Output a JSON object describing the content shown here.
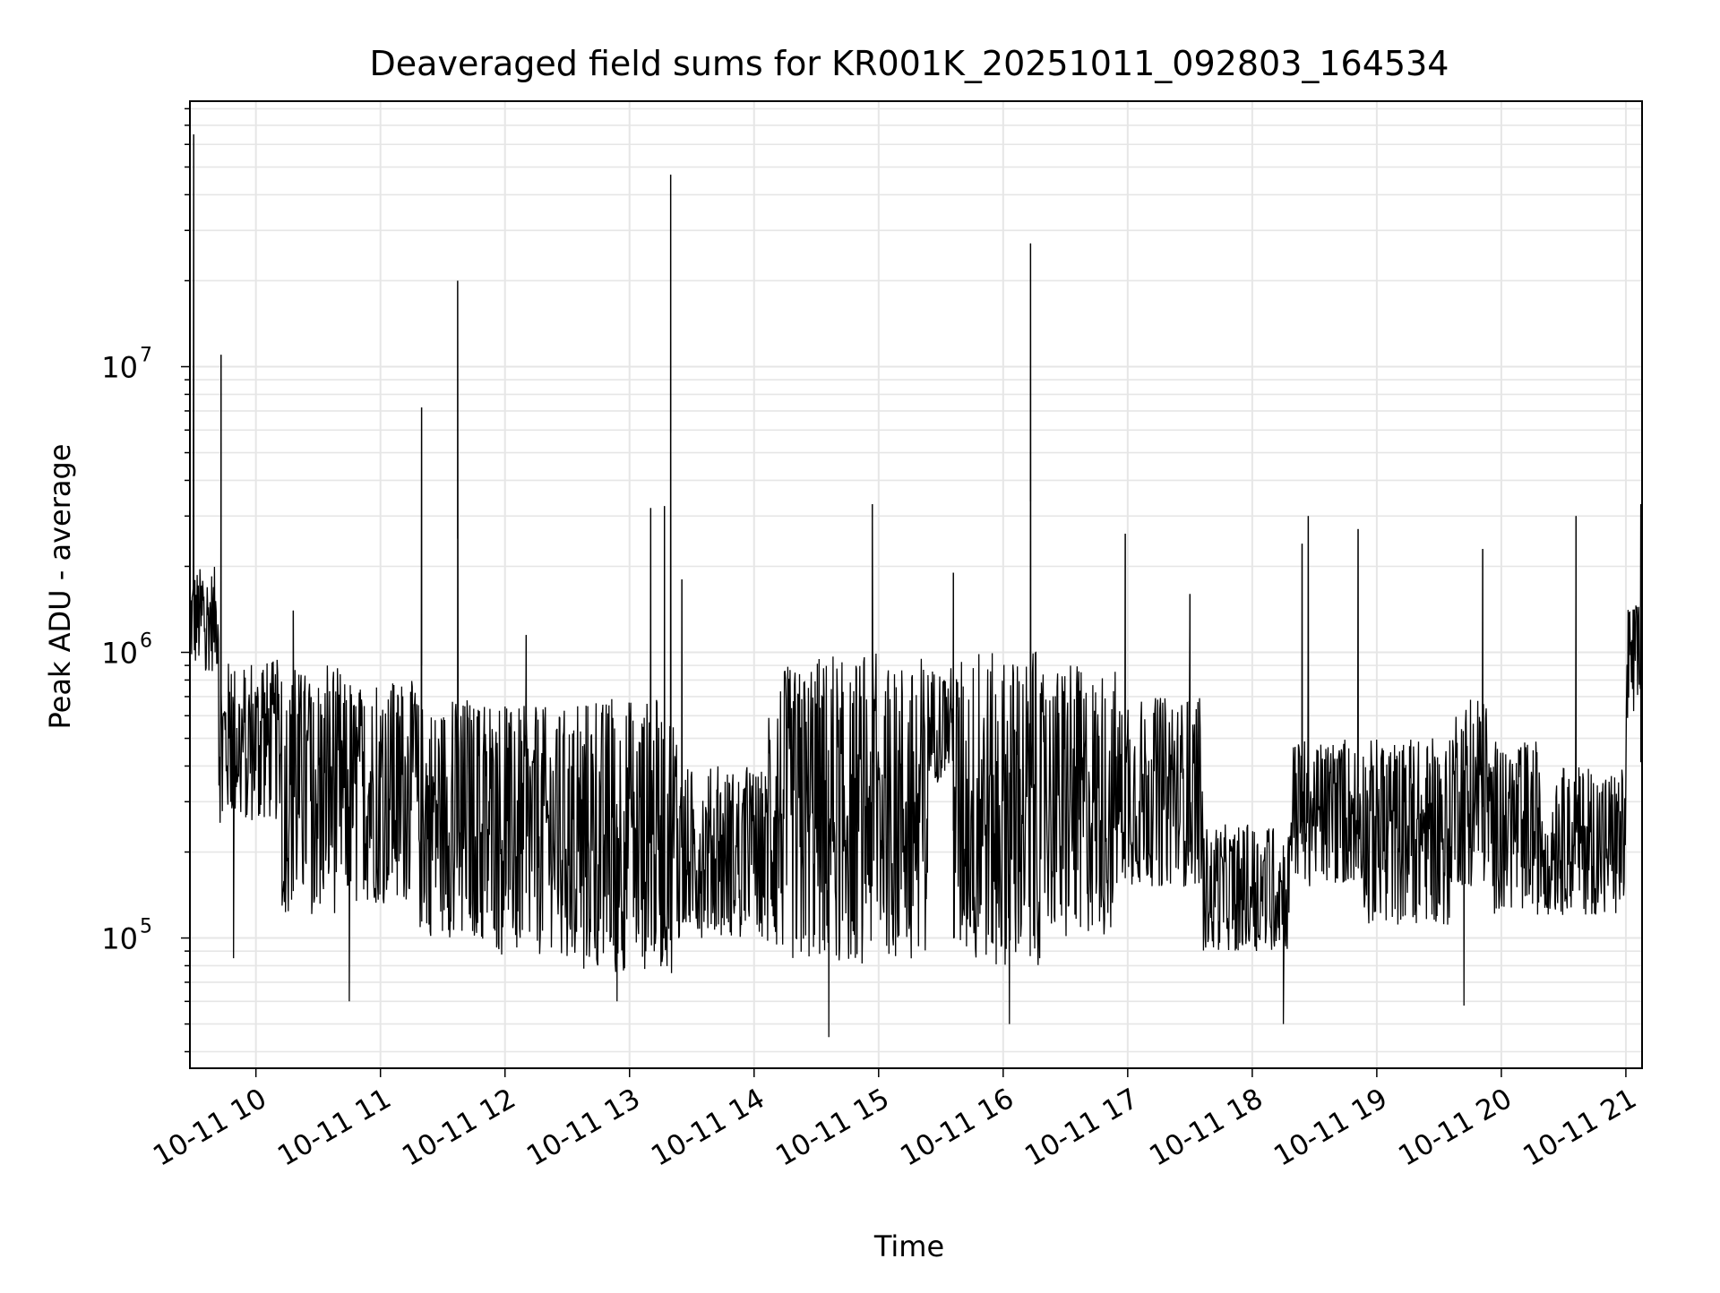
{
  "chart_data": {
    "type": "line",
    "title": "Deaveraged field sums for KR001K_20251011_092803_164534",
    "xlabel": "Time",
    "ylabel": "Peak ADU - average",
    "yscale": "log",
    "ylim": [
      35000,
      85000000
    ],
    "xlim_hours": [
      9.47,
      21.13
    ],
    "grid": true,
    "line_color": "#000000",
    "grid_color": "#e6e6e6",
    "x_ticks": [
      {
        "hour": 10,
        "label": "10-11 10"
      },
      {
        "hour": 11,
        "label": "10-11 11"
      },
      {
        "hour": 12,
        "label": "10-11 12"
      },
      {
        "hour": 13,
        "label": "10-11 13"
      },
      {
        "hour": 14,
        "label": "10-11 14"
      },
      {
        "hour": 15,
        "label": "10-11 15"
      },
      {
        "hour": 16,
        "label": "10-11 16"
      },
      {
        "hour": 17,
        "label": "10-11 17"
      },
      {
        "hour": 18,
        "label": "10-11 18"
      },
      {
        "hour": 19,
        "label": "10-11 19"
      },
      {
        "hour": 20,
        "label": "10-11 20"
      },
      {
        "hour": 21,
        "label": "10-11 21"
      }
    ],
    "y_ticks": [
      {
        "value": 100000,
        "base": "10",
        "exp": "5"
      },
      {
        "value": 1000000,
        "base": "10",
        "exp": "6"
      },
      {
        "value": 10000000,
        "base": "10",
        "exp": "7"
      }
    ],
    "series": [
      {
        "name": "Peak ADU - average",
        "segments": [
          {
            "t0": 9.47,
            "t1": 9.7,
            "lo": 850000,
            "hi": 2000000
          },
          {
            "t0": 9.7,
            "t1": 10.2,
            "lo": 250000,
            "hi": 950000
          },
          {
            "t0": 10.2,
            "t1": 10.7,
            "lo": 120000,
            "hi": 900000
          },
          {
            "t0": 10.7,
            "t1": 11.3,
            "lo": 130000,
            "hi": 800000
          },
          {
            "t0": 11.3,
            "t1": 11.8,
            "lo": 100000,
            "hi": 700000
          },
          {
            "t0": 11.8,
            "t1": 12.6,
            "lo": 85000,
            "hi": 650000
          },
          {
            "t0": 12.6,
            "t1": 13.4,
            "lo": 75000,
            "hi": 700000
          },
          {
            "t0": 13.4,
            "t1": 14.1,
            "lo": 100000,
            "hi": 400000
          },
          {
            "t0": 14.1,
            "t1": 14.5,
            "lo": 80000,
            "hi": 900000
          },
          {
            "t0": 14.5,
            "t1": 15.4,
            "lo": 80000,
            "hi": 1000000
          },
          {
            "t0": 15.4,
            "t1": 15.6,
            "lo": 350000,
            "hi": 900000
          },
          {
            "t0": 15.6,
            "t1": 16.3,
            "lo": 80000,
            "hi": 1000000
          },
          {
            "t0": 16.3,
            "t1": 16.9,
            "lo": 100000,
            "hi": 900000
          },
          {
            "t0": 16.9,
            "t1": 17.6,
            "lo": 150000,
            "hi": 700000
          },
          {
            "t0": 17.6,
            "t1": 18.3,
            "lo": 90000,
            "hi": 250000
          },
          {
            "t0": 18.3,
            "t1": 18.9,
            "lo": 150000,
            "hi": 500000
          },
          {
            "t0": 18.9,
            "t1": 19.6,
            "lo": 110000,
            "hi": 500000
          },
          {
            "t0": 19.6,
            "t1": 19.9,
            "lo": 150000,
            "hi": 700000
          },
          {
            "t0": 19.9,
            "t1": 20.3,
            "lo": 120000,
            "hi": 500000
          },
          {
            "t0": 20.3,
            "t1": 21.0,
            "lo": 120000,
            "hi": 400000
          },
          {
            "t0": 21.0,
            "t1": 21.13,
            "lo": 500000,
            "hi": 1500000
          }
        ],
        "spikes": [
          {
            "t": 9.5,
            "value": 65000000
          },
          {
            "t": 9.72,
            "value": 11000000
          },
          {
            "t": 10.3,
            "value": 1400000
          },
          {
            "t": 11.33,
            "value": 7200000
          },
          {
            "t": 11.62,
            "value": 20000000
          },
          {
            "t": 12.17,
            "value": 1150000
          },
          {
            "t": 13.17,
            "value": 3200000
          },
          {
            "t": 13.28,
            "value": 3250000
          },
          {
            "t": 13.33,
            "value": 47000000
          },
          {
            "t": 13.42,
            "value": 1800000
          },
          {
            "t": 14.95,
            "value": 3300000
          },
          {
            "t": 15.6,
            "value": 1900000
          },
          {
            "t": 16.22,
            "value": 27000000
          },
          {
            "t": 16.98,
            "value": 2600000
          },
          {
            "t": 17.5,
            "value": 1600000
          },
          {
            "t": 18.4,
            "value": 2400000
          },
          {
            "t": 18.45,
            "value": 3000000
          },
          {
            "t": 18.85,
            "value": 2700000
          },
          {
            "t": 19.85,
            "value": 2300000
          },
          {
            "t": 20.6,
            "value": 3000000
          },
          {
            "t": 21.12,
            "value": 3300000
          }
        ],
        "dips": [
          {
            "t": 9.82,
            "value": 85000
          },
          {
            "t": 10.75,
            "value": 60000
          },
          {
            "t": 12.9,
            "value": 60000
          },
          {
            "t": 14.6,
            "value": 45000
          },
          {
            "t": 16.05,
            "value": 50000
          },
          {
            "t": 18.25,
            "value": 50000
          },
          {
            "t": 19.7,
            "value": 58000
          }
        ]
      }
    ]
  }
}
